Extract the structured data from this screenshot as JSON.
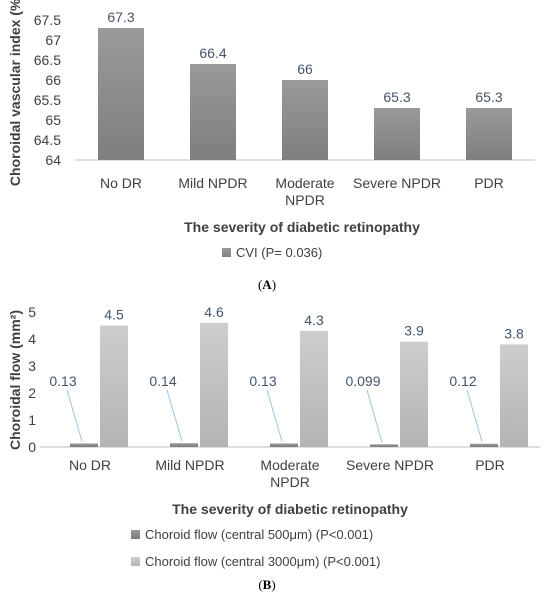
{
  "chart_data": [
    {
      "type": "bar",
      "panel_label": "A",
      "categories": [
        [
          "No DR"
        ],
        [
          "Mild NPDR"
        ],
        [
          "Moderate",
          "NPDR"
        ],
        [
          "Severe NPDR"
        ],
        [
          "PDR"
        ]
      ],
      "series": [
        {
          "name": "CVI (P= 0.036)",
          "values": [
            67.3,
            66.4,
            66,
            65.3,
            65.3
          ],
          "labels": [
            "67.3",
            "66.4",
            "66",
            "65.3",
            "65.3"
          ],
          "color": "#8c8c8c"
        }
      ],
      "xlabel": "The severity of diabetic retinopathy",
      "ylabel": "Choroidal vascular index (%)",
      "ylim": [
        64,
        67.5
      ],
      "yticks": [
        "64",
        "64.5",
        "65",
        "65.5",
        "66",
        "66.5",
        "67",
        "67.5"
      ],
      "grid": false,
      "legend_position": "bottom"
    },
    {
      "type": "bar",
      "panel_label": "B",
      "categories": [
        [
          "No DR"
        ],
        [
          "Mild NPDR"
        ],
        [
          "Moderate",
          "NPDR"
        ],
        [
          "Severe NPDR"
        ],
        [
          "PDR"
        ]
      ],
      "series": [
        {
          "name": "Choroid flow (central 500μm) (P<0.001)",
          "values": [
            0.13,
            0.14,
            0.13,
            0.099,
            0.12
          ],
          "labels": [
            "0.13",
            "0.14",
            "0.13",
            "0.099",
            "0.12"
          ],
          "color": "#8a8a8a"
        },
        {
          "name": "Choroid flow (central 3000μm) (P<0.001)",
          "values": [
            4.5,
            4.6,
            4.3,
            3.9,
            3.8
          ],
          "labels": [
            "4.5",
            "4.6",
            "4.3",
            "3.9",
            "3.8"
          ],
          "color": "#c2c2c2"
        }
      ],
      "xlabel": "The severity of diabetic retinopathy",
      "ylabel": "Choroidal flow (mm²)",
      "ylim": [
        0,
        5
      ],
      "yticks": [
        "0",
        "1",
        "2",
        "3",
        "4",
        "5"
      ],
      "grid": false,
      "legend_position": "bottom"
    }
  ]
}
